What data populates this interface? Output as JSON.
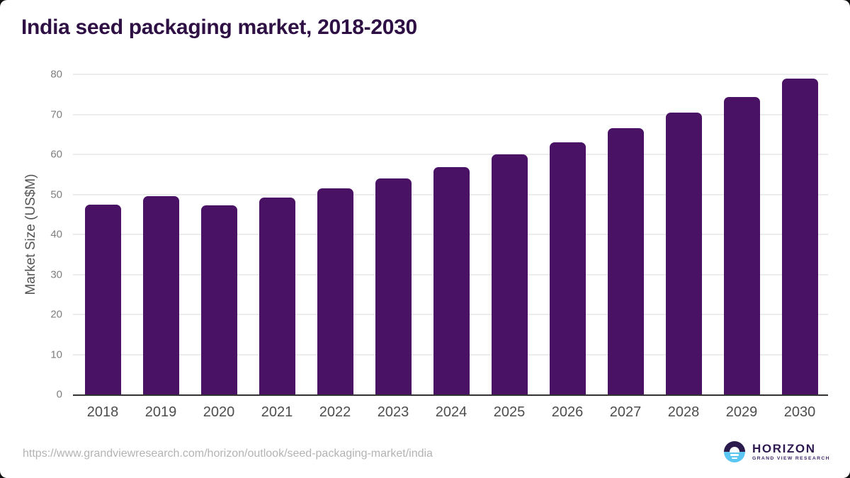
{
  "title": "India seed packaging market, 2018-2030",
  "chart_data": {
    "type": "bar",
    "title": "India seed packaging market, 2018-2030",
    "categories": [
      "2018",
      "2019",
      "2020",
      "2021",
      "2022",
      "2023",
      "2024",
      "2025",
      "2026",
      "2027",
      "2028",
      "2029",
      "2030"
    ],
    "values": [
      47.5,
      49.5,
      47.3,
      49.2,
      51.5,
      54.0,
      56.8,
      60.0,
      63.1,
      66.6,
      70.4,
      74.4,
      78.9
    ],
    "xlabel": "",
    "ylabel": "Market Size (US$M)",
    "ylim": [
      0,
      80
    ],
    "yticks": [
      0,
      10,
      20,
      30,
      40,
      50,
      60,
      70,
      80
    ],
    "grid": true,
    "legend_position": "none"
  },
  "colors": {
    "bar": "#4a1264",
    "title": "#2f1045",
    "axis": "#323232",
    "grid": "#ececec",
    "logo_navy": "#2b1b4d",
    "logo_blue": "#5cc6f2",
    "logo_title": "#2e1a50",
    "logo_subtitle": "#40276b"
  },
  "footer": {
    "source_url": "https://www.grandviewresearch.com/horizon/outlook/seed-packaging-market/india",
    "logo": {
      "title": "HORIZON",
      "subtitle": "GRAND VIEW RESEARCH",
      "icon": "horizon-sunrise-icon"
    }
  }
}
